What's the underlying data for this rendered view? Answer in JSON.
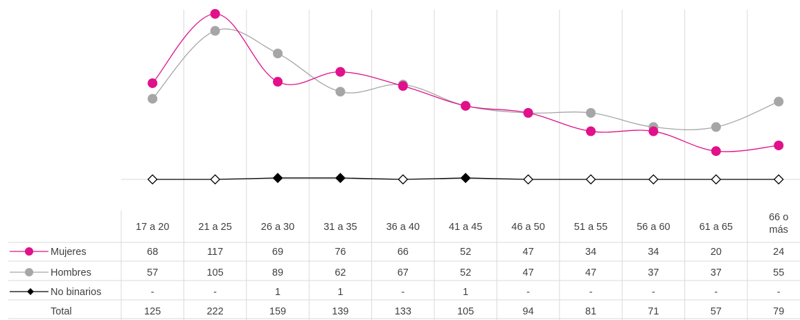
{
  "chart_data": {
    "type": "line",
    "categories": [
      "17 a 20",
      "21 a 25",
      "26 a 30",
      "31 a 35",
      "36 a 40",
      "41 a 45",
      "46 a 50",
      "51 a 55",
      "56 a 60",
      "61 a 65",
      "66 o más"
    ],
    "series": [
      {
        "name": "Mujeres",
        "color": "#e0118a",
        "marker": "circle",
        "values": [
          68,
          117,
          69,
          76,
          66,
          52,
          47,
          34,
          34,
          20,
          24
        ],
        "labels": [
          "68",
          "117",
          "69",
          "76",
          "66",
          "52",
          "47",
          "34",
          "34",
          "20",
          "24"
        ]
      },
      {
        "name": "Hombres",
        "color": "#a6a6a6",
        "marker": "circle",
        "values": [
          57,
          105,
          89,
          62,
          67,
          52,
          47,
          47,
          37,
          37,
          55
        ],
        "labels": [
          "57",
          "105",
          "89",
          "62",
          "67",
          "52",
          "47",
          "47",
          "37",
          "37",
          "55"
        ]
      },
      {
        "name": "No binarios",
        "color": "#000000",
        "marker": "diamond",
        "values": [
          0,
          0,
          1,
          1,
          0,
          1,
          0,
          0,
          0,
          0,
          0
        ],
        "labels": [
          "-",
          "-",
          "1",
          "1",
          "-",
          "1",
          "-",
          "-",
          "-",
          "-",
          "-"
        ]
      }
    ],
    "total": {
      "name": "Total",
      "labels": [
        "125",
        "222",
        "159",
        "139",
        "133",
        "105",
        "94",
        "81",
        "71",
        "57",
        "79"
      ]
    },
    "ylim": [
      0,
      117
    ],
    "grid": "vertical",
    "legend": "table"
  }
}
